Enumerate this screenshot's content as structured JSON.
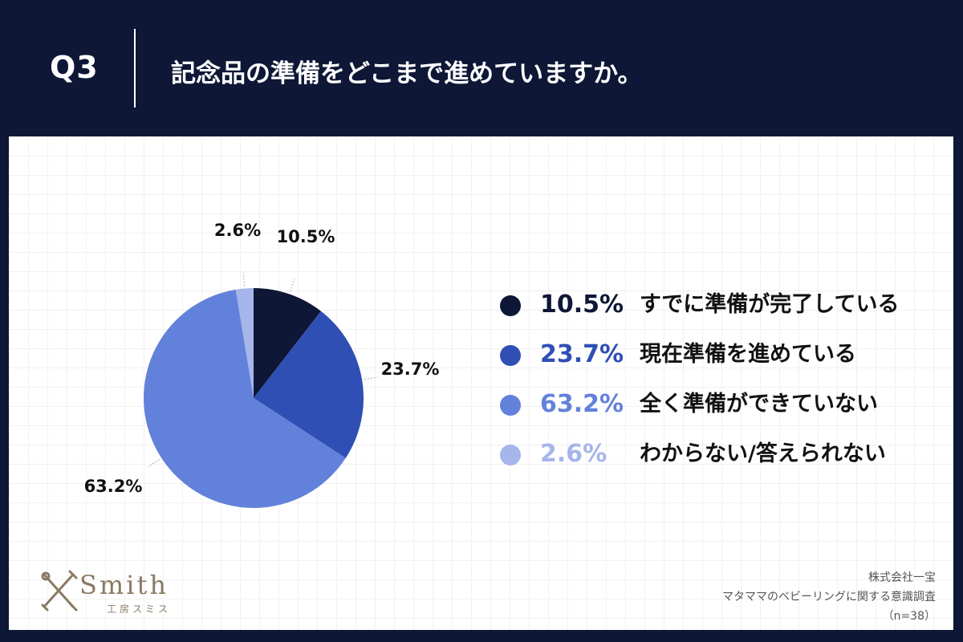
{
  "header": {
    "question_number": "Q3",
    "question": "記念品の準備をどこまで進めていますか。"
  },
  "chart_data": {
    "type": "pie",
    "categories": [
      "すでに準備が完了している",
      "現在準備を進めている",
      "全く準備ができていない",
      "わからない/答えられない"
    ],
    "values": [
      10.5,
      23.7,
      63.2,
      2.6
    ],
    "data_labels": [
      "10.5%",
      "23.7%",
      "63.2%",
      "2.6%"
    ],
    "colors": [
      "#0e1736",
      "#2f4fb5",
      "#6281db",
      "#a6b5ea"
    ],
    "legend_placement": "right",
    "start": "top, clockwise"
  },
  "legend": [
    {
      "value": "10.5%",
      "label": "すでに準備が完了している",
      "color": "#0e1736"
    },
    {
      "value": "23.7%",
      "label": "現在準備を進めている",
      "color": "#2f4fb5"
    },
    {
      "value": "63.2%",
      "label": "全く準備ができていない",
      "color": "#6281db"
    },
    {
      "value": "2.6%",
      "label": "わからない/答えられない",
      "color": "#a6b5ea"
    }
  ],
  "brand": {
    "name": "Smith",
    "sub": "工房スミス",
    "color": "#8a7a63"
  },
  "source": {
    "company": "株式会社一宝",
    "survey": "マタママのベビーリングに関する意識調査",
    "sample": "（n=38）"
  }
}
